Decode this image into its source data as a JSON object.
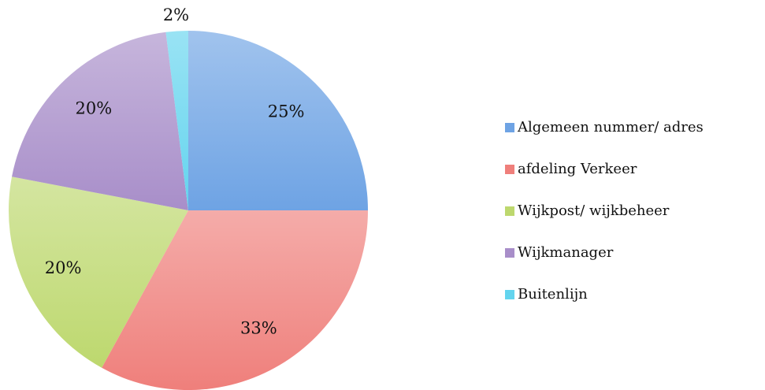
{
  "chart_data": {
    "type": "pie",
    "categories": [
      "Algemeen nummer/ adres",
      "afdeling Verkeer",
      "Wijkpost/ wijkbeheer",
      "Wijkmanager",
      "Buitenlijn"
    ],
    "values": [
      25,
      33,
      20,
      20,
      2
    ],
    "value_labels": [
      "25%",
      "33%",
      "20%",
      "20%",
      "2%"
    ],
    "colors": [
      "#6ea3e4",
      "#ef7f7b",
      "#bdd86e",
      "#a88ec9",
      "#63d4ee"
    ],
    "legend": "right"
  }
}
